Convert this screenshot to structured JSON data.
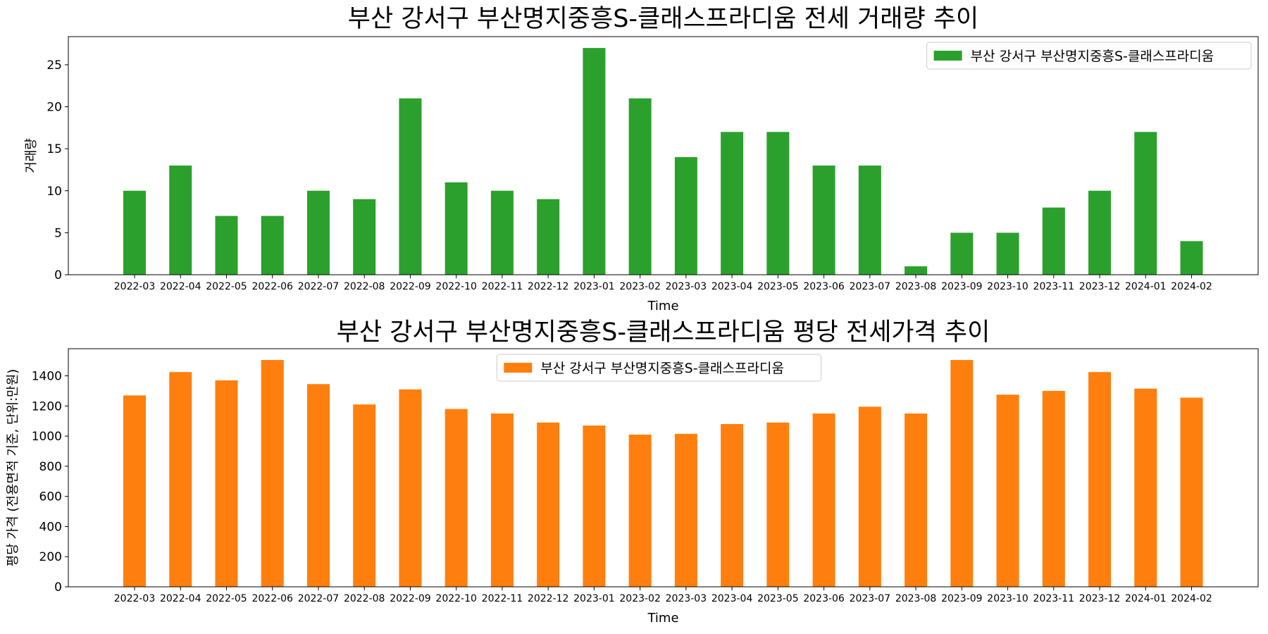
{
  "chart_data": [
    {
      "type": "bar",
      "title": "부산 강서구 부산명지중흥S-클래스프라디움 전세 거래량 추이",
      "xlabel": "Time",
      "ylabel": "거래량",
      "categories": [
        "2022-03",
        "2022-04",
        "2022-05",
        "2022-06",
        "2022-07",
        "2022-08",
        "2022-09",
        "2022-10",
        "2022-11",
        "2022-12",
        "2023-01",
        "2023-02",
        "2023-03",
        "2023-04",
        "2023-05",
        "2023-06",
        "2023-07",
        "2023-08",
        "2023-09",
        "2023-10",
        "2023-11",
        "2023-12",
        "2024-01",
        "2024-02"
      ],
      "series": [
        {
          "name": "부산 강서구 부산명지중흥S-클래스프라디움",
          "color": "#2ca02c",
          "values": [
            10,
            13,
            7,
            7,
            10,
            9,
            21,
            11,
            10,
            9,
            27,
            21,
            14,
            17,
            17,
            13,
            13,
            1,
            5,
            5,
            8,
            10,
            17,
            4
          ]
        }
      ],
      "ylim": [
        0,
        28.35
      ],
      "yticks": [
        0,
        5,
        10,
        15,
        20,
        25
      ],
      "grid": false,
      "legend_position": "top-right"
    },
    {
      "type": "bar",
      "title": "부산 강서구 부산명지중흥S-클래스프라디움 평당 전세가격 추이",
      "xlabel": "Time",
      "ylabel": "평당 가격 (전용면적 기준, 단위:만원)",
      "categories": [
        "2022-03",
        "2022-04",
        "2022-05",
        "2022-06",
        "2022-07",
        "2022-08",
        "2022-09",
        "2022-10",
        "2022-11",
        "2022-12",
        "2023-01",
        "2023-02",
        "2023-03",
        "2023-04",
        "2023-05",
        "2023-06",
        "2023-07",
        "2023-08",
        "2023-09",
        "2023-10",
        "2023-11",
        "2023-12",
        "2024-01",
        "2024-02"
      ],
      "series": [
        {
          "name": "부산 강서구 부산명지중흥S-클래스프라디움",
          "color": "#ff7f0e",
          "values": [
            1270,
            1425,
            1370,
            1505,
            1345,
            1210,
            1310,
            1180,
            1150,
            1090,
            1070,
            1010,
            1015,
            1080,
            1090,
            1150,
            1195,
            1150,
            1505,
            1275,
            1300,
            1425,
            1315,
            1255
          ]
        }
      ],
      "ylim": [
        0,
        1580
      ],
      "yticks": [
        0,
        200,
        400,
        600,
        800,
        1000,
        1200,
        1400
      ],
      "grid": false,
      "legend_position": "top-center"
    }
  ]
}
